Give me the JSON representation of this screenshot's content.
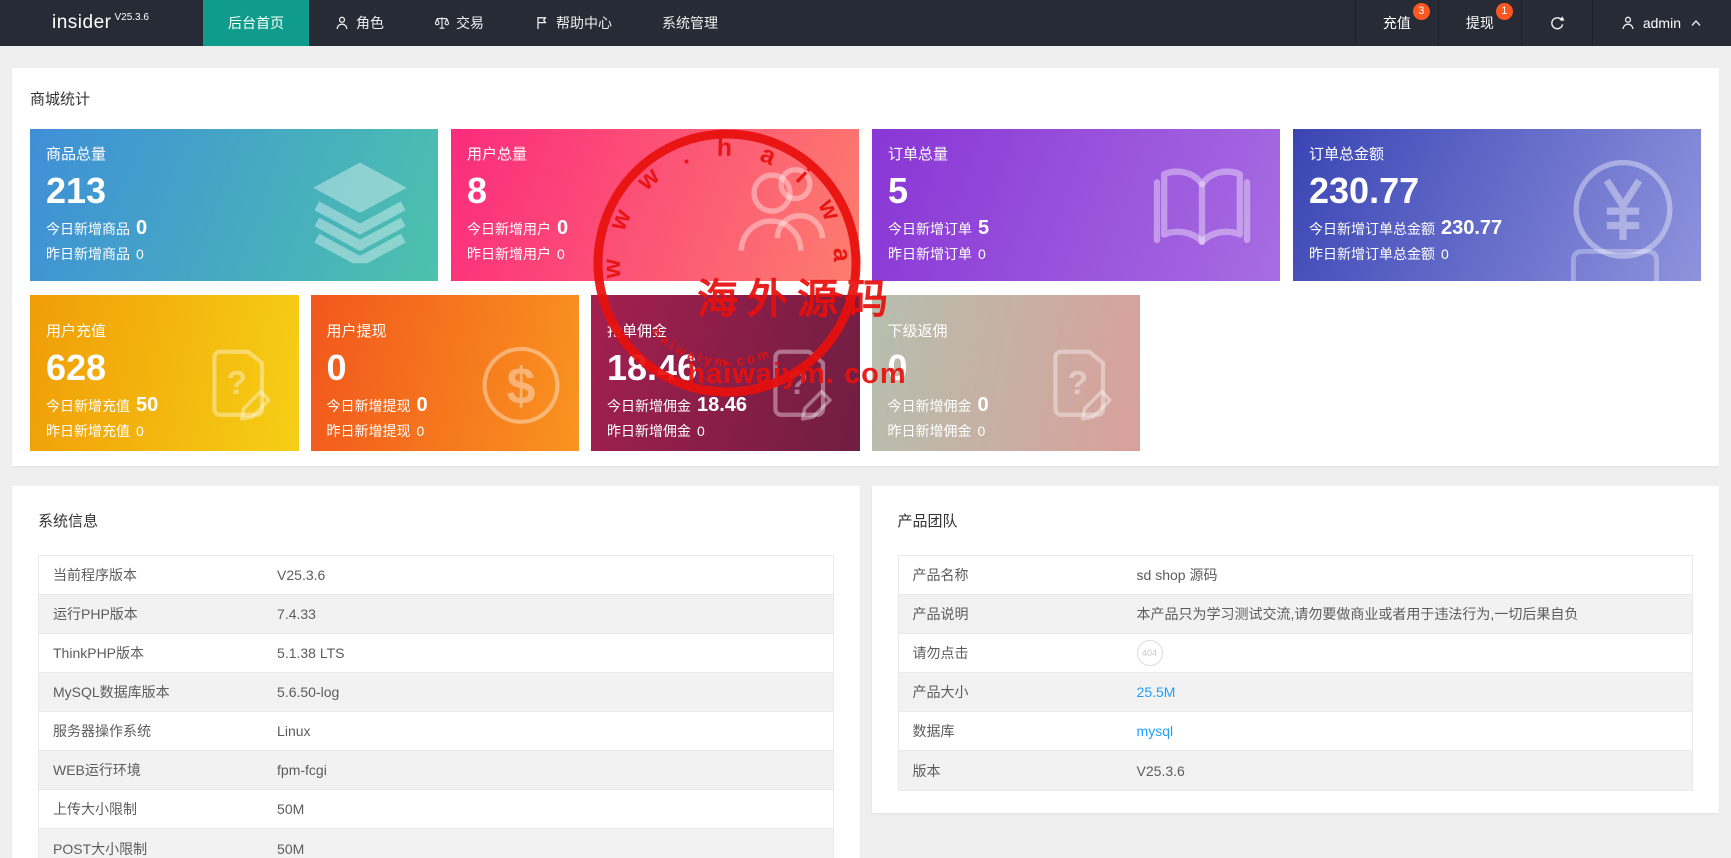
{
  "navbar": {
    "brand": "insider",
    "brand_version": "V25.3.6",
    "menu": [
      {
        "label": "后台首页",
        "icon": null,
        "active": true
      },
      {
        "label": "角色",
        "icon": "person-icon",
        "active": false
      },
      {
        "label": "交易",
        "icon": "scales-icon",
        "active": false
      },
      {
        "label": "帮助中心",
        "icon": "flag-icon",
        "active": false
      },
      {
        "label": "系统管理",
        "icon": null,
        "active": false
      }
    ],
    "shortcuts": [
      {
        "label": "充值",
        "badge": "3"
      },
      {
        "label": "提现",
        "badge": "1"
      }
    ],
    "user": {
      "name": "admin"
    }
  },
  "stats": {
    "title": "商城统计",
    "cards_row1": [
      {
        "title": "商品总量",
        "value": "213",
        "today_label": "今日新增商品",
        "today_value": "0",
        "yesterday_label": "昨日新增商品",
        "yesterday_value": "0",
        "icon": "layers-icon",
        "gradient": {
          "angle": 110,
          "from": "#3f8fd8",
          "to": "#4cc2ad"
        }
      },
      {
        "title": "用户总量",
        "value": "8",
        "today_label": "今日新增用户",
        "today_value": "0",
        "yesterday_label": "昨日新增用户",
        "yesterday_value": "0",
        "icon": "users-icon",
        "gradient": {
          "angle": 110,
          "from": "#fb2b7d",
          "to": "#fd7d6e"
        }
      },
      {
        "title": "订单总量",
        "value": "5",
        "today_label": "今日新增订单",
        "today_value": "5",
        "yesterday_label": "昨日新增订单",
        "yesterday_value": "0",
        "icon": "book-icon",
        "gradient": {
          "angle": 110,
          "from": "#8936d5",
          "to": "#a76ce2"
        }
      },
      {
        "title": "订单总金额",
        "value": "230.77",
        "today_label": "今日新增订单总金额",
        "today_value": "230.77",
        "yesterday_label": "昨日新增订单总金额",
        "yesterday_value": "0",
        "icon": "yen-circle-icon",
        "gradient": {
          "angle": 115,
          "from": "#3a45b4",
          "to": "#8f93dd"
        }
      }
    ],
    "cards_row2": [
      {
        "title": "用户充值",
        "value": "628",
        "today_label": "今日新增充值",
        "today_value": "50",
        "yesterday_label": "昨日新增充值",
        "yesterday_value": "0",
        "icon": "doc-question-icon",
        "gradient": {
          "angle": 100,
          "from": "#f09d08",
          "to": "#f6cf15"
        }
      },
      {
        "title": "用户提现",
        "value": "0",
        "today_label": "今日新增提现",
        "today_value": "0",
        "yesterday_label": "昨日新增提现",
        "yesterday_value": "0",
        "icon": "dollar-circle-icon",
        "gradient": {
          "angle": 100,
          "from": "#f2571d",
          "to": "#f9941f"
        }
      },
      {
        "title": "抢单佣金",
        "value": "18.46",
        "today_label": "今日新增佣金",
        "today_value": "18.46",
        "yesterday_label": "昨日新增佣金",
        "yesterday_value": "0",
        "icon": "doc-question-icon",
        "gradient": {
          "angle": 105,
          "from": "#a31f4f",
          "to": "#6f1e41"
        }
      },
      {
        "title": "下级返佣",
        "value": "0",
        "today_label": "今日新增佣金",
        "today_value": "0",
        "yesterday_label": "昨日新增佣金",
        "yesterday_value": "0",
        "icon": "doc-question-icon",
        "gradient": {
          "angle": 100,
          "from": "#b6bfae",
          "to": "#d9a09a"
        }
      }
    ]
  },
  "system_info": {
    "title": "系统信息",
    "rows": [
      {
        "label": "当前程序版本",
        "value": "V25.3.6",
        "type": "text"
      },
      {
        "label": "运行PHP版本",
        "value": "7.4.33",
        "type": "text"
      },
      {
        "label": "ThinkPHP版本",
        "value": "5.1.38 LTS",
        "type": "text"
      },
      {
        "label": "MySQL数据库版本",
        "value": "5.6.50-log",
        "type": "text"
      },
      {
        "label": "服务器操作系统",
        "value": "Linux",
        "type": "text"
      },
      {
        "label": "WEB运行环境",
        "value": "fpm-fcgi",
        "type": "text"
      },
      {
        "label": "上传大小限制",
        "value": "50M",
        "type": "text"
      },
      {
        "label": "POST大小限制",
        "value": "50M",
        "type": "text"
      }
    ]
  },
  "product_team": {
    "title": "产品团队",
    "rows": [
      {
        "label": "产品名称",
        "value": "sd shop 源码",
        "type": "text"
      },
      {
        "label": "产品说明",
        "value": "本产品只为学习测试交流,请勿要做商业或者用于违法行为,一切后果自负",
        "type": "text"
      },
      {
        "label": "请勿点击",
        "value": "404",
        "type": "badge"
      },
      {
        "label": "产品大小",
        "value": "25.5M",
        "type": "link"
      },
      {
        "label": "数据库",
        "value": "mysql",
        "type": "link"
      },
      {
        "label": "版本",
        "value": "V25.3.6",
        "type": "text"
      }
    ]
  },
  "watermark": {
    "arc_text": "w w w . h a i w a i y m . c o m",
    "center_text": "海外源码",
    "main_text": "haiwaiym. com",
    "bottom_text": "h a i w a i y m . c o m",
    "color": "#e8100d"
  }
}
